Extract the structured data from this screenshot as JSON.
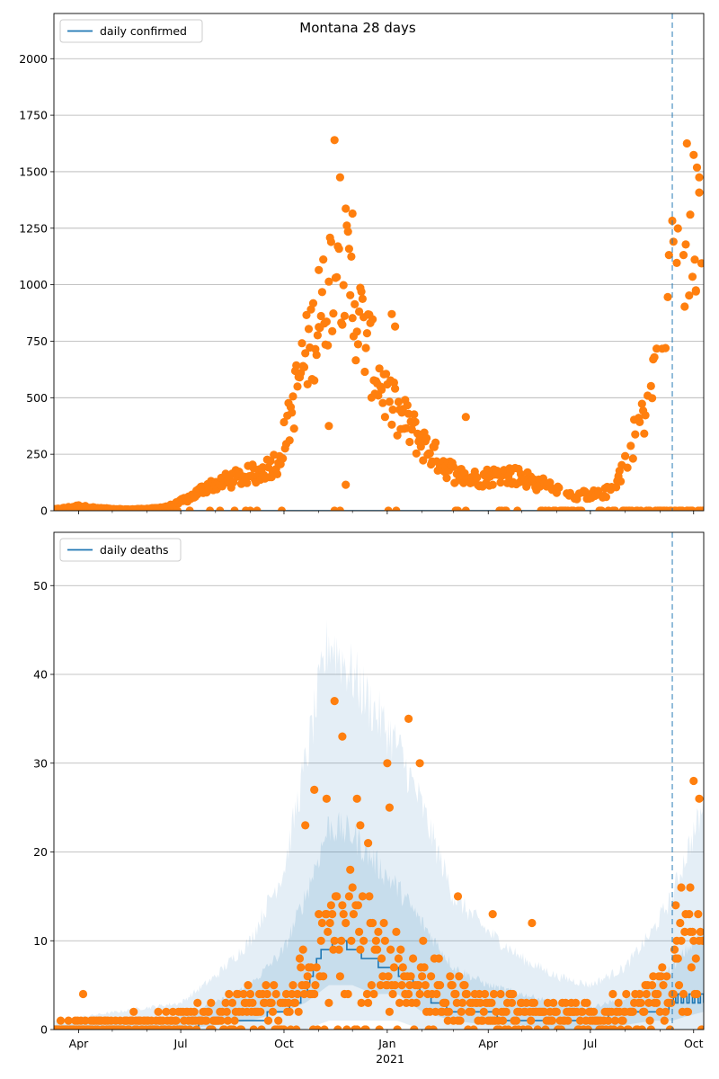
{
  "figure": {
    "title": "Montana 28 days",
    "x_year_label": "2021"
  },
  "colors": {
    "line": "#1f77b4",
    "scatter": "#ff7f0e",
    "band": "#1f77b4",
    "grid": "#b0b0b0",
    "vline": "#1f77b4"
  },
  "chart_data": [
    {
      "type": "line",
      "title": "Montana 28 days",
      "legend": "daily confirmed",
      "legend_position": "top-left",
      "xlim": [
        "2020-03-10",
        "2021-10-10"
      ],
      "ylim": [
        0,
        2200
      ],
      "yticks": [
        0,
        250,
        500,
        750,
        1000,
        1250,
        1500,
        1750,
        2000
      ],
      "xticks": [
        {
          "date": "2020-04-01",
          "label": "Apr"
        },
        {
          "date": "2020-07-01",
          "label": "Jul"
        },
        {
          "date": "2020-10-01",
          "label": "Oct"
        },
        {
          "date": "2021-01-01",
          "label": "Jan"
        },
        {
          "date": "2021-04-01",
          "label": "Apr"
        },
        {
          "date": "2021-07-01",
          "label": "Jul"
        },
        {
          "date": "2021-10-01",
          "label": "Oct"
        }
      ],
      "vline_date": "2021-09-12",
      "grid": true,
      "line_series": {
        "name": "daily confirmed",
        "x": [
          "2020-03-10",
          "2021-10-10"
        ],
        "y": [
          0,
          0
        ]
      },
      "observed_keypoints": {
        "dates": [
          "2020-03-10",
          "2020-04-01",
          "2020-04-20",
          "2020-05-15",
          "2020-06-10",
          "2020-06-25",
          "2020-07-10",
          "2020-07-25",
          "2020-08-10",
          "2020-08-25",
          "2020-09-10",
          "2020-09-25",
          "2020-10-05",
          "2020-10-15",
          "2020-10-25",
          "2020-11-05",
          "2020-11-12",
          "2020-11-20",
          "2020-12-01",
          "2020-12-10",
          "2020-12-20",
          "2021-01-01",
          "2021-01-10",
          "2021-01-20",
          "2021-02-01",
          "2021-02-15",
          "2021-03-01",
          "2021-03-15",
          "2021-04-01",
          "2021-04-15",
          "2021-05-01",
          "2021-05-15",
          "2021-06-01",
          "2021-06-15",
          "2021-07-01",
          "2021-07-15",
          "2021-07-25",
          "2021-08-05",
          "2021-08-15",
          "2021-08-25",
          "2021-09-05",
          "2021-09-12",
          "2021-09-20",
          "2021-09-30",
          "2021-10-10"
        ],
        "values": [
          5,
          20,
          10,
          5,
          10,
          25,
          60,
          110,
          130,
          150,
          170,
          220,
          380,
          600,
          750,
          900,
          1050,
          1150,
          950,
          800,
          650,
          500,
          420,
          380,
          300,
          230,
          170,
          140,
          150,
          160,
          150,
          120,
          100,
          70,
          70,
          80,
          130,
          280,
          400,
          550,
          750,
          1050,
          1200,
          1250,
          1300
        ]
      },
      "observed_outliers": [
        {
          "date": "2020-11-15",
          "value": 1640
        },
        {
          "date": "2020-11-20",
          "value": 1475
        },
        {
          "date": "2020-12-01",
          "value": 1315
        },
        {
          "date": "2020-11-01",
          "value": 1065
        },
        {
          "date": "2021-01-05",
          "value": 870
        },
        {
          "date": "2021-01-08",
          "value": 815
        },
        {
          "date": "2020-11-10",
          "value": 375
        },
        {
          "date": "2020-11-25",
          "value": 115
        },
        {
          "date": "2021-03-12",
          "value": 415
        },
        {
          "date": "2021-09-25",
          "value": 1625
        },
        {
          "date": "2021-10-06",
          "value": 1475
        },
        {
          "date": "2021-09-28",
          "value": 1310
        },
        {
          "date": "2021-09-30",
          "value": 1035
        },
        {
          "date": "2021-10-03",
          "value": 970
        }
      ]
    },
    {
      "type": "line",
      "legend": "daily deaths",
      "legend_position": "top-left",
      "xlim": [
        "2020-03-10",
        "2021-10-10"
      ],
      "ylim": [
        0,
        56
      ],
      "yticks": [
        0,
        10,
        20,
        30,
        40,
        50
      ],
      "xticks": [
        {
          "date": "2020-04-01",
          "label": "Apr"
        },
        {
          "date": "2020-07-01",
          "label": "Jul"
        },
        {
          "date": "2020-10-01",
          "label": "Oct"
        },
        {
          "date": "2021-01-01",
          "label": "Jan"
        },
        {
          "date": "2021-04-01",
          "label": "Apr"
        },
        {
          "date": "2021-07-01",
          "label": "Jul"
        },
        {
          "date": "2021-10-01",
          "label": "Oct"
        }
      ],
      "vline_date": "2021-09-12",
      "grid": true,
      "line_series": {
        "name": "daily deaths",
        "x": [
          "2020-03-10",
          "2020-07-01",
          "2020-08-01",
          "2020-09-01",
          "2020-10-01",
          "2020-10-20",
          "2020-10-28",
          "2020-11-05",
          "2020-11-20",
          "2020-12-01",
          "2020-12-15",
          "2021-01-01",
          "2021-01-20",
          "2021-02-01",
          "2021-02-15",
          "2021-03-01",
          "2021-03-15",
          "2021-04-01",
          "2021-04-15",
          "2021-05-01",
          "2021-06-01",
          "2021-07-01",
          "2021-08-01",
          "2021-08-20",
          "2021-09-05",
          "2021-09-12",
          "2021-09-20",
          "2021-10-10"
        ],
        "y": [
          0,
          0,
          1,
          1,
          2,
          4,
          7,
          9,
          10,
          9,
          8,
          7,
          6,
          4,
          3,
          2,
          2,
          2,
          1,
          1,
          1,
          1,
          2,
          2,
          2,
          3,
          4,
          4
        ]
      },
      "band_outer": {
        "x": [
          "2020-03-10",
          "2020-07-01",
          "2020-08-01",
          "2020-09-01",
          "2020-10-01",
          "2020-10-20",
          "2020-11-10",
          "2020-12-01",
          "2020-12-20",
          "2021-01-10",
          "2021-02-01",
          "2021-03-01",
          "2021-04-01",
          "2021-05-01",
          "2021-06-01",
          "2021-07-01",
          "2021-08-01",
          "2021-08-25",
          "2021-09-12",
          "2021-09-25",
          "2021-10-10"
        ],
        "upper": [
          1,
          3,
          6,
          10,
          18,
          30,
          44,
          40,
          36,
          32,
          25,
          15,
          11,
          8,
          6,
          5,
          7,
          11,
          15,
          20,
          25
        ],
        "lower": [
          0,
          0,
          0,
          0,
          0,
          0,
          1,
          1,
          1,
          1,
          0,
          0,
          0,
          0,
          0,
          0,
          0,
          0,
          0,
          0,
          0
        ]
      },
      "band_inner": {
        "x": [
          "2020-03-10",
          "2020-07-01",
          "2020-08-01",
          "2020-09-01",
          "2020-10-01",
          "2020-10-20",
          "2020-11-10",
          "2020-12-01",
          "2020-12-20",
          "2021-01-10",
          "2021-02-01",
          "2021-03-01",
          "2021-04-01",
          "2021-05-01",
          "2021-06-01",
          "2021-07-01",
          "2021-08-01",
          "2021-08-25",
          "2021-09-12",
          "2021-09-25",
          "2021-10-10"
        ],
        "upper": [
          0.5,
          1.5,
          3,
          5,
          9,
          15,
          23,
          22,
          19,
          16,
          12,
          7,
          5,
          4,
          3,
          2.5,
          3.5,
          5,
          7,
          9,
          11
        ],
        "lower": [
          0,
          0,
          0.5,
          1,
          2,
          3,
          5,
          5,
          4,
          4,
          2,
          1,
          0.5,
          0.5,
          0,
          0,
          0.5,
          1,
          1,
          1.5,
          2
        ]
      },
      "observed_keypoints": {
        "dates": [
          "2020-03-10",
          "2020-06-01",
          "2020-07-10",
          "2020-08-10",
          "2020-09-10",
          "2020-10-05",
          "2020-10-25",
          "2020-11-10",
          "2020-11-25",
          "2020-12-10",
          "2020-12-25",
          "2021-01-10",
          "2021-02-01",
          "2021-02-20",
          "2021-03-15",
          "2021-04-10",
          "2021-05-10",
          "2021-06-10",
          "2021-07-10",
          "2021-08-10",
          "2021-08-25",
          "2021-09-12",
          "2021-09-25",
          "2021-10-10"
        ],
        "values": [
          0,
          0.5,
          1,
          2,
          2.5,
          3.5,
          6,
          10,
          11,
          10,
          8,
          7,
          6,
          4,
          3,
          2,
          2,
          1.5,
          1.5,
          2.5,
          4,
          6,
          8,
          8
        ]
      },
      "observed_outliers": [
        {
          "date": "2020-04-05",
          "value": 4
        },
        {
          "date": "2020-11-15",
          "value": 37
        },
        {
          "date": "2020-11-22",
          "value": 33
        },
        {
          "date": "2021-01-20",
          "value": 35
        },
        {
          "date": "2021-01-30",
          "value": 30
        },
        {
          "date": "2021-01-01",
          "value": 30
        },
        {
          "date": "2021-01-03",
          "value": 25
        },
        {
          "date": "2020-10-28",
          "value": 27
        },
        {
          "date": "2020-11-08",
          "value": 26
        },
        {
          "date": "2020-12-05",
          "value": 26
        },
        {
          "date": "2020-10-20",
          "value": 23
        },
        {
          "date": "2020-12-08",
          "value": 23
        },
        {
          "date": "2020-12-15",
          "value": 21
        },
        {
          "date": "2021-10-01",
          "value": 28
        },
        {
          "date": "2021-10-06",
          "value": 26
        },
        {
          "date": "2021-03-05",
          "value": 15
        },
        {
          "date": "2021-04-05",
          "value": 13
        },
        {
          "date": "2021-05-10",
          "value": 12
        },
        {
          "date": "2021-09-15",
          "value": 14
        },
        {
          "date": "2021-09-20",
          "value": 16
        },
        {
          "date": "2021-09-28",
          "value": 16
        }
      ]
    }
  ]
}
